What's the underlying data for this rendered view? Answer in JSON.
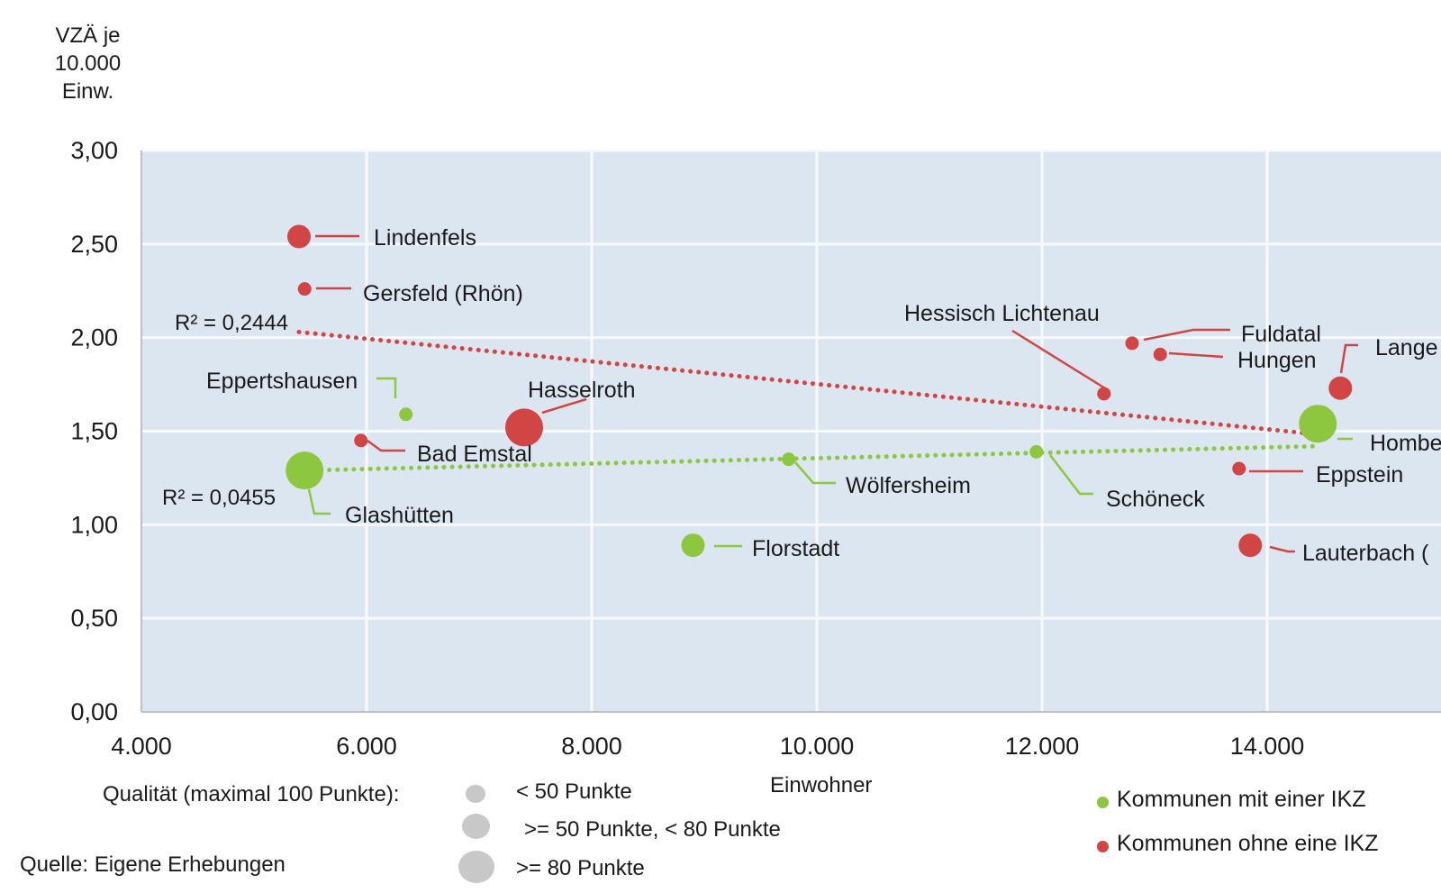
{
  "chart_data": {
    "type": "scatter",
    "ylabel_lines": [
      "VZÄ je",
      "10.000",
      "Einw."
    ],
    "xlabel": "Einwohner",
    "xlim": [
      4000,
      16000
    ],
    "ylim": [
      0,
      3
    ],
    "x_ticks": [
      4000,
      6000,
      8000,
      10000,
      12000,
      14000
    ],
    "x_tick_labels": [
      "4.000",
      "6.000",
      "8.000",
      "10.000",
      "12.000",
      "14.000"
    ],
    "y_ticks": [
      0,
      0.5,
      1,
      1.5,
      2,
      2.5,
      3
    ],
    "y_tick_labels": [
      "0,00",
      "0,50",
      "1,00",
      "1,50",
      "2,00",
      "2,50",
      "3,00"
    ],
    "grid": true,
    "colors": {
      "green": "#8dc63f",
      "red": "#d24545",
      "plot_bg": "#dce6f1",
      "grid": "#ffffff"
    },
    "series": [
      {
        "name": "Kommunen mit einer IKZ",
        "color": "#8dc63f",
        "points": [
          {
            "label": "Eppertshausen",
            "x": 6350,
            "y": 1.59,
            "quality": "small"
          },
          {
            "label": "Glashütten",
            "x": 5450,
            "y": 1.29,
            "quality": "large"
          },
          {
            "label": "Wölfersheim",
            "x": 9750,
            "y": 1.35,
            "quality": "small"
          },
          {
            "label": "Schöneck",
            "x": 11950,
            "y": 1.39,
            "quality": "small"
          },
          {
            "label": "Florstadt",
            "x": 8900,
            "y": 0.89,
            "quality": "medium"
          },
          {
            "label": "Hombe",
            "x": 14450,
            "y": 1.54,
            "quality": "large"
          }
        ],
        "trend": {
          "x": [
            5450,
            14450
          ],
          "y": [
            1.29,
            1.42
          ],
          "label": "R² = 0,0455"
        }
      },
      {
        "name": "Kommunen ohne eine IKZ",
        "color": "#d24545",
        "points": [
          {
            "label": "Lindenfels",
            "x": 5400,
            "y": 2.54,
            "quality": "medium"
          },
          {
            "label": "Gersfeld (Rhön)",
            "x": 5450,
            "y": 2.26,
            "quality": "small"
          },
          {
            "label": "Hasselroth",
            "x": 7400,
            "y": 1.52,
            "quality": "large"
          },
          {
            "label": "Bad Emstal",
            "x": 5950,
            "y": 1.45,
            "quality": "small"
          },
          {
            "label": "Hessisch Lichtenau",
            "x": 12550,
            "y": 1.7,
            "quality": "small"
          },
          {
            "label": "Fuldatal",
            "x": 12800,
            "y": 1.97,
            "quality": "small"
          },
          {
            "label": "Hungen",
            "x": 13050,
            "y": 1.91,
            "quality": "small"
          },
          {
            "label": "Lange",
            "x": 14650,
            "y": 1.73,
            "quality": "medium"
          },
          {
            "label": "Eppstein",
            "x": 13750,
            "y": 1.3,
            "quality": "small"
          },
          {
            "label": "Lauterbach (",
            "x": 13850,
            "y": 0.89,
            "quality": "medium"
          }
        ],
        "trend": {
          "x": [
            5400,
            14500
          ],
          "y": [
            2.03,
            1.48
          ],
          "label": "R² = 0,2444"
        }
      }
    ],
    "size_legend": {
      "title": "Qualität  (maximal 100 Punkte):",
      "items": [
        {
          "key": "small",
          "label": "< 50 Punkte"
        },
        {
          "key": "medium",
          "label": ">= 50 Punkte,  < 80 Punkte"
        },
        {
          "key": "large",
          "label": ">= 80 Punkte"
        }
      ]
    },
    "source": "Quelle:  Eigene  Erhebungen"
  }
}
